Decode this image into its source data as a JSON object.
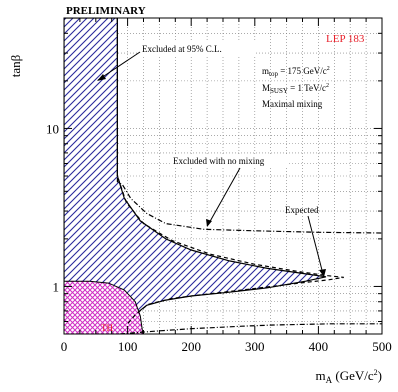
{
  "chart_data": {
    "type": "area",
    "header": "PRELIMINARY",
    "xlabel_main": "m",
    "xlabel_sub": "A",
    "xlabel_unit": " (GeV/c",
    "xlabel_unit_sup": "2",
    "xlabel_close": ")",
    "ylabel_main": "tan",
    "ylabel_sym": "β",
    "xlim": [
      0,
      500
    ],
    "ylim": [
      0.5,
      50
    ],
    "yscale": "log",
    "grid": true,
    "x_ticks": [
      {
        "value": 0,
        "label": "0"
      },
      {
        "value": 100,
        "label": "100"
      },
      {
        "value": 200,
        "label": "200"
      },
      {
        "value": 300,
        "label": "300"
      },
      {
        "value": 400,
        "label": "400"
      },
      {
        "value": 500,
        "label": "500"
      }
    ],
    "y_ticks": [
      {
        "value": 1,
        "label": "1"
      },
      {
        "value": 10,
        "label": "10"
      }
    ],
    "legend": {
      "lep": "LEP 183",
      "mtop_a": "m",
      "mtop_sub": "top",
      "mtop_b": " = 175 GeV/c",
      "mtop_sup": "2",
      "msusy_a": "M",
      "msusy_sub": "SUSY",
      "msusy_b": " = 1 TeV/c",
      "msusy_sup": "2",
      "mixing": "Maximal mixing"
    },
    "annotations": {
      "excluded_95": "Excluded at 95% C.L.",
      "excluded_nomix": "Excluded with no mixing",
      "expected": "Expected",
      "th": "TH"
    },
    "colors": {
      "excluded_hatch": "#2a2a9c",
      "theory_hatch": "#d12fc4",
      "lep_label": "#e8202a",
      "th_label": "#e8202a"
    },
    "regions": {
      "excluded_vertical_band": [
        {
          "x": 0,
          "y": 50
        },
        {
          "x": 84,
          "y": 50
        },
        {
          "x": 84,
          "y": 5.0
        },
        {
          "x": 95,
          "y": 3.6
        },
        {
          "x": 120,
          "y": 2.6
        },
        {
          "x": 160,
          "y": 2.0
        },
        {
          "x": 200,
          "y": 1.7
        },
        {
          "x": 260,
          "y": 1.45
        },
        {
          "x": 320,
          "y": 1.3
        },
        {
          "x": 380,
          "y": 1.2
        },
        {
          "x": 412,
          "y": 1.15
        },
        {
          "x": 380,
          "y": 1.08
        },
        {
          "x": 320,
          "y": 0.98
        },
        {
          "x": 260,
          "y": 0.92
        },
        {
          "x": 200,
          "y": 0.87
        },
        {
          "x": 160,
          "y": 0.82
        },
        {
          "x": 130,
          "y": 0.76
        },
        {
          "x": 115,
          "y": 0.68
        },
        {
          "x": 100,
          "y": 0.6
        },
        {
          "x": 90,
          "y": 0.55
        },
        {
          "x": 0,
          "y": 0.55
        }
      ],
      "theory_excluded": [
        {
          "x": 0,
          "y": 0.5
        },
        {
          "x": 0,
          "y": 1.08
        },
        {
          "x": 40,
          "y": 1.08
        },
        {
          "x": 70,
          "y": 1.05
        },
        {
          "x": 95,
          "y": 0.95
        },
        {
          "x": 112,
          "y": 0.8
        },
        {
          "x": 120,
          "y": 0.65
        },
        {
          "x": 124,
          "y": 0.5
        }
      ]
    },
    "series": [
      {
        "style": "dashed",
        "values": [
          {
            "x": 84,
            "y": 50
          },
          {
            "x": 84,
            "y": 5.0
          },
          {
            "x": 98,
            "y": 3.4
          },
          {
            "x": 125,
            "y": 2.5
          },
          {
            "x": 170,
            "y": 1.95
          },
          {
            "x": 230,
            "y": 1.6
          },
          {
            "x": 300,
            "y": 1.38
          },
          {
            "x": 370,
            "y": 1.24
          },
          {
            "x": 415,
            "y": 1.17
          },
          {
            "x": 440,
            "y": 1.14
          },
          {
            "x": 415,
            "y": 1.1
          },
          {
            "x": 370,
            "y": 1.05
          },
          {
            "x": 300,
            "y": 0.97
          },
          {
            "x": 230,
            "y": 0.9
          },
          {
            "x": 170,
            "y": 0.84
          },
          {
            "x": 132,
            "y": 0.77
          },
          {
            "x": 112,
            "y": 0.66
          },
          {
            "x": 100,
            "y": 0.58
          }
        ]
      },
      {
        "style": "dotdash",
        "values": [
          {
            "x": 84,
            "y": 50
          },
          {
            "x": 84,
            "y": 4.6
          },
          {
            "x": 92,
            "y": 4.4
          },
          {
            "x": 105,
            "y": 3.6
          },
          {
            "x": 130,
            "y": 2.9
          },
          {
            "x": 160,
            "y": 2.5
          },
          {
            "x": 220,
            "y": 2.3
          },
          {
            "x": 300,
            "y": 2.25
          },
          {
            "x": 400,
            "y": 2.2
          },
          {
            "x": 500,
            "y": 2.18
          }
        ]
      },
      {
        "style": "dotdash",
        "values": [
          {
            "x": 88,
            "y": 0.5
          },
          {
            "x": 140,
            "y": 0.52
          },
          {
            "x": 200,
            "y": 0.54
          },
          {
            "x": 280,
            "y": 0.56
          },
          {
            "x": 330,
            "y": 0.57
          },
          {
            "x": 420,
            "y": 0.58
          },
          {
            "x": 500,
            "y": 0.58
          }
        ]
      }
    ]
  }
}
